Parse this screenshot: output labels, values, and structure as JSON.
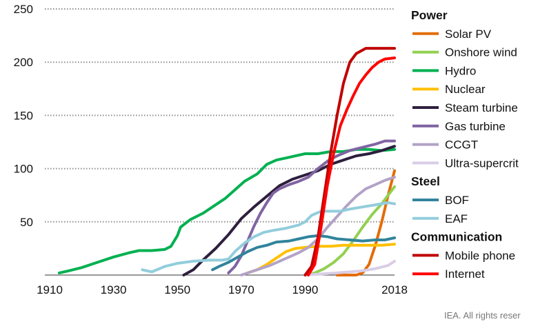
{
  "chart_data": {
    "type": "line",
    "xlim": [
      1910,
      2018
    ],
    "ylim": [
      0,
      250
    ],
    "x_ticks": [
      "1910",
      "1930",
      "1950",
      "1970",
      "1990",
      "2018"
    ],
    "y_ticks": [
      "50",
      "100",
      "150",
      "200",
      "250"
    ],
    "grid": "horizontal-dotted",
    "legend_position": "right",
    "groups": [
      {
        "title": "Power",
        "series": [
          {
            "name": "Solar PV",
            "color": "#e36c0a",
            "points": [
              [
                2000,
                0
              ],
              [
                2006,
                0
              ],
              [
                2008,
                2
              ],
              [
                2010,
                10
              ],
              [
                2012,
                28
              ],
              [
                2014,
                50
              ],
              [
                2016,
                75
              ],
              [
                2018,
                98
              ]
            ]
          },
          {
            "name": "Onshore wind",
            "color": "#92d050",
            "points": [
              [
                1990,
                0
              ],
              [
                1993,
                2
              ],
              [
                1996,
                6
              ],
              [
                1999,
                12
              ],
              [
                2002,
                20
              ],
              [
                2005,
                32
              ],
              [
                2008,
                45
              ],
              [
                2011,
                57
              ],
              [
                2014,
                67
              ],
              [
                2016,
                75
              ],
              [
                2018,
                83
              ]
            ]
          },
          {
            "name": "Hydro",
            "color": "#00b050",
            "points": [
              [
                1913,
                2
              ],
              [
                1916,
                4
              ],
              [
                1920,
                7
              ],
              [
                1925,
                12
              ],
              [
                1930,
                17
              ],
              [
                1935,
                21
              ],
              [
                1938,
                23
              ],
              [
                1942,
                23
              ],
              [
                1946,
                24
              ],
              [
                1948,
                27
              ],
              [
                1950,
                37
              ],
              [
                1951,
                45
              ],
              [
                1954,
                52
              ],
              [
                1958,
                58
              ],
              [
                1962,
                66
              ],
              [
                1965,
                72
              ],
              [
                1968,
                80
              ],
              [
                1971,
                88
              ],
              [
                1975,
                95
              ],
              [
                1978,
                104
              ],
              [
                1981,
                108
              ],
              [
                1984,
                110
              ],
              [
                1987,
                112
              ],
              [
                1990,
                114
              ],
              [
                1994,
                114
              ],
              [
                1998,
                116
              ],
              [
                2002,
                116
              ],
              [
                2006,
                118
              ],
              [
                2010,
                118
              ],
              [
                2014,
                117
              ],
              [
                2018,
                118
              ]
            ]
          },
          {
            "name": "Nuclear",
            "color": "#ffc000",
            "points": [
              [
                1972,
                2
              ],
              [
                1975,
                5
              ],
              [
                1978,
                10
              ],
              [
                1981,
                16
              ],
              [
                1984,
                22
              ],
              [
                1987,
                25
              ],
              [
                1990,
                26
              ],
              [
                1994,
                27
              ],
              [
                1998,
                27
              ],
              [
                2002,
                28
              ],
              [
                2006,
                28
              ],
              [
                2010,
                28
              ],
              [
                2014,
                28
              ],
              [
                2018,
                29
              ]
            ]
          },
          {
            "name": "Steam turbine",
            "color": "#2e1f3e",
            "points": [
              [
                1952,
                0
              ],
              [
                1955,
                5
              ],
              [
                1958,
                14
              ],
              [
                1962,
                25
              ],
              [
                1966,
                38
              ],
              [
                1970,
                53
              ],
              [
                1974,
                64
              ],
              [
                1978,
                74
              ],
              [
                1982,
                84
              ],
              [
                1986,
                90
              ],
              [
                1990,
                94
              ],
              [
                1994,
                98
              ],
              [
                1998,
                104
              ],
              [
                2002,
                108
              ],
              [
                2006,
                112
              ],
              [
                2010,
                114
              ],
              [
                2014,
                117
              ],
              [
                2018,
                121
              ]
            ]
          },
          {
            "name": "Gas turbine",
            "color": "#8064a2",
            "points": [
              [
                1966,
                2
              ],
              [
                1968,
                8
              ],
              [
                1970,
                18
              ],
              [
                1972,
                32
              ],
              [
                1974,
                46
              ],
              [
                1976,
                58
              ],
              [
                1978,
                68
              ],
              [
                1980,
                77
              ],
              [
                1982,
                81
              ],
              [
                1985,
                85
              ],
              [
                1988,
                88
              ],
              [
                1991,
                92
              ],
              [
                1994,
                100
              ],
              [
                1997,
                107
              ],
              [
                2000,
                112
              ],
              [
                2004,
                117
              ],
              [
                2008,
                120
              ],
              [
                2012,
                123
              ],
              [
                2015,
                126
              ],
              [
                2018,
                126
              ]
            ]
          },
          {
            "name": "CCGT",
            "color": "#b3a2c7",
            "points": [
              [
                1970,
                0
              ],
              [
                1973,
                3
              ],
              [
                1976,
                6
              ],
              [
                1979,
                9
              ],
              [
                1982,
                13
              ],
              [
                1985,
                17
              ],
              [
                1988,
                21
              ],
              [
                1991,
                26
              ],
              [
                1994,
                34
              ],
              [
                1997,
                45
              ],
              [
                2000,
                55
              ],
              [
                2003,
                65
              ],
              [
                2006,
                74
              ],
              [
                2009,
                81
              ],
              [
                2012,
                85
              ],
              [
                2015,
                89
              ],
              [
                2018,
                92
              ]
            ]
          },
          {
            "name": "Ultra-supercrit",
            "color": "#d9cde6",
            "points": [
              [
                1990,
                0
              ],
              [
                1995,
                1
              ],
              [
                2000,
                2
              ],
              [
                2004,
                3
              ],
              [
                2008,
                4
              ],
              [
                2012,
                6
              ],
              [
                2016,
                9
              ],
              [
                2018,
                13
              ]
            ]
          }
        ]
      },
      {
        "title": "Steel",
        "series": [
          {
            "name": "BOF",
            "color": "#31849b",
            "points": [
              [
                1961,
                5
              ],
              [
                1963,
                8
              ],
              [
                1966,
                12
              ],
              [
                1969,
                17
              ],
              [
                1972,
                22
              ],
              [
                1975,
                26
              ],
              [
                1978,
                28
              ],
              [
                1981,
                31
              ],
              [
                1985,
                32
              ],
              [
                1988,
                34
              ],
              [
                1991,
                36
              ],
              [
                1994,
                37
              ],
              [
                1997,
                36
              ],
              [
                2000,
                34
              ],
              [
                2004,
                33
              ],
              [
                2008,
                32
              ],
              [
                2012,
                33
              ],
              [
                2015,
                33
              ],
              [
                2018,
                35
              ]
            ]
          },
          {
            "name": "EAF",
            "color": "#92cddc",
            "points": [
              [
                1939,
                5
              ],
              [
                1942,
                3
              ],
              [
                1946,
                8
              ],
              [
                1950,
                11
              ],
              [
                1955,
                13
              ],
              [
                1960,
                14
              ],
              [
                1964,
                14
              ],
              [
                1966,
                15
              ],
              [
                1968,
                22
              ],
              [
                1971,
                30
              ],
              [
                1974,
                36
              ],
              [
                1977,
                40
              ],
              [
                1980,
                42
              ],
              [
                1984,
                44
              ],
              [
                1988,
                47
              ],
              [
                1990,
                50
              ],
              [
                1992,
                56
              ],
              [
                1995,
                60
              ],
              [
                1998,
                60
              ],
              [
                2001,
                60
              ],
              [
                2004,
                62
              ],
              [
                2008,
                64
              ],
              [
                2012,
                66
              ],
              [
                2016,
                68
              ],
              [
                2018,
                67
              ]
            ]
          }
        ]
      },
      {
        "title": "Communication",
        "series": [
          {
            "name": "Mobile phone",
            "color": "#c00000",
            "points": [
              [
                1990,
                0
              ],
              [
                1992,
                8
              ],
              [
                1994,
                35
              ],
              [
                1996,
                75
              ],
              [
                1998,
                115
              ],
              [
                2000,
                150
              ],
              [
                2002,
                180
              ],
              [
                2004,
                200
              ],
              [
                2006,
                208
              ],
              [
                2009,
                213
              ],
              [
                2012,
                213
              ],
              [
                2015,
                213
              ],
              [
                2018,
                213
              ]
            ]
          },
          {
            "name": "Internet",
            "color": "#ff0000",
            "points": [
              [
                1991,
                0
              ],
              [
                1993,
                10
              ],
              [
                1995,
                45
              ],
              [
                1997,
                85
              ],
              [
                1999,
                115
              ],
              [
                2001,
                140
              ],
              [
                2003,
                155
              ],
              [
                2005,
                168
              ],
              [
                2007,
                180
              ],
              [
                2009,
                188
              ],
              [
                2011,
                195
              ],
              [
                2013,
                200
              ],
              [
                2015,
                203
              ],
              [
                2018,
                204
              ]
            ]
          }
        ]
      }
    ]
  },
  "credit": "IEA. All rights reser"
}
